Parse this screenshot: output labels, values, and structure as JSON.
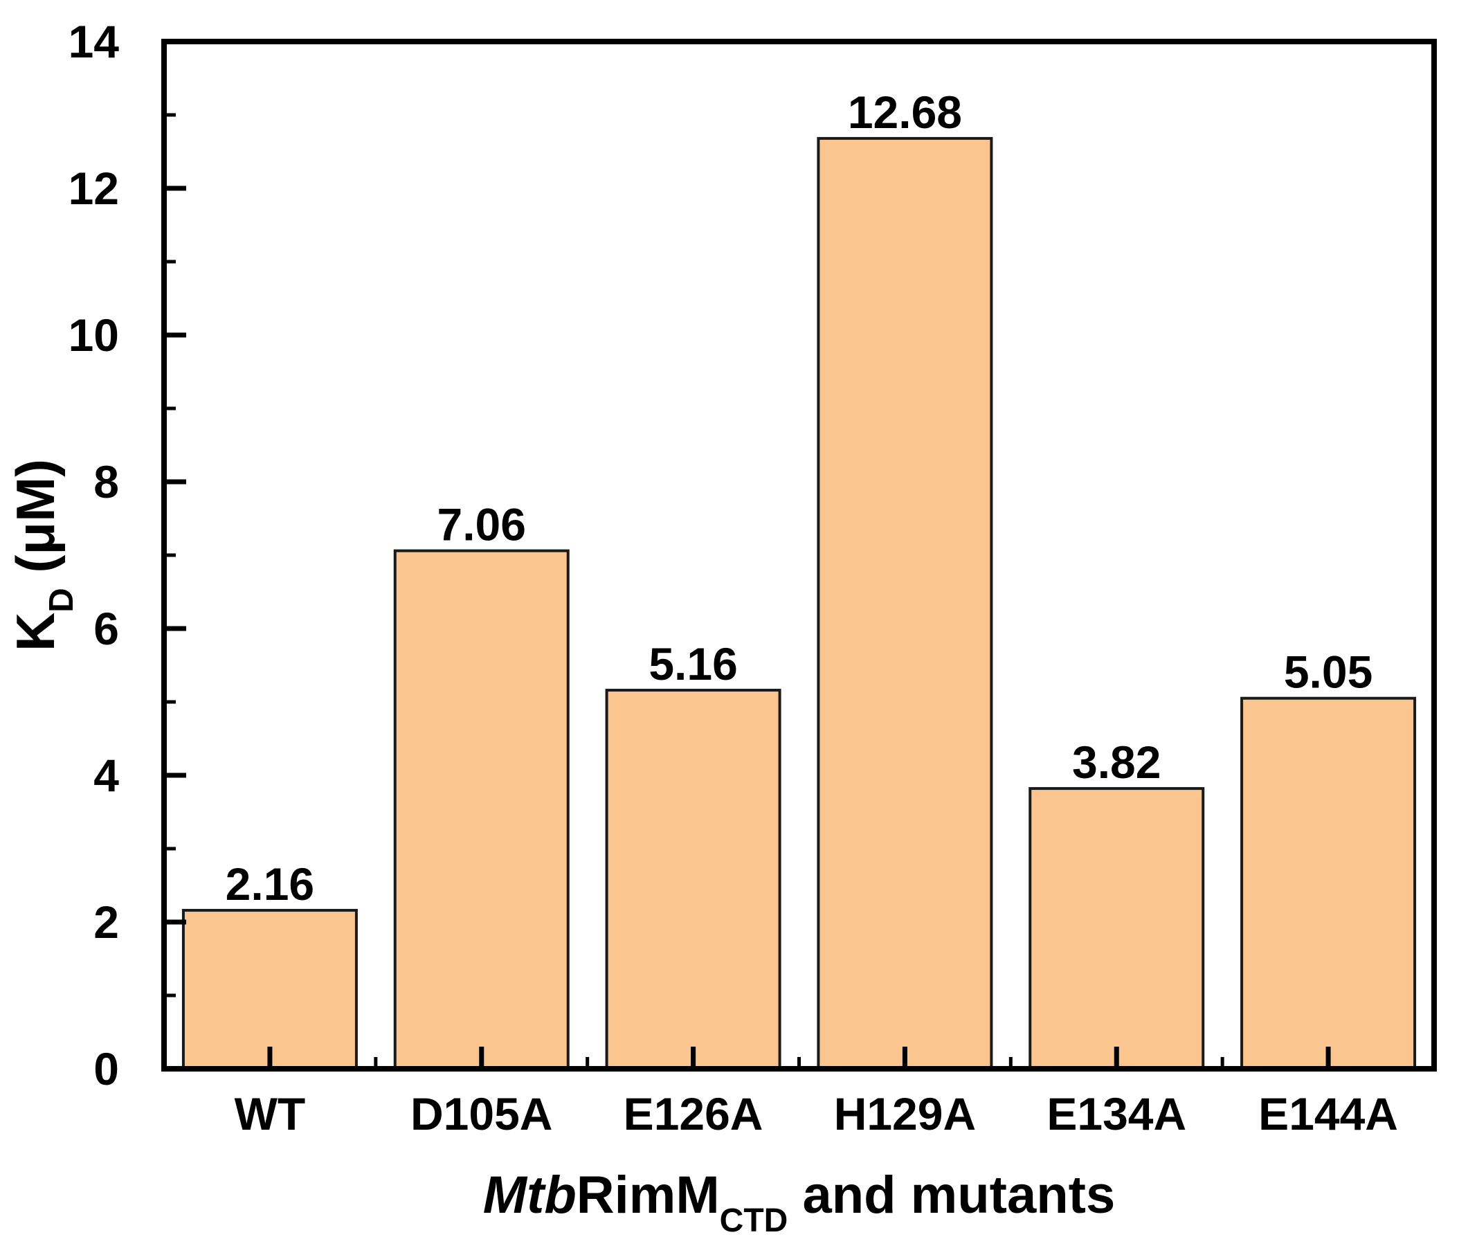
{
  "chart_data": {
    "type": "bar",
    "title": "",
    "categories": [
      "WT",
      "D105A",
      "E126A",
      "H129A",
      "E134A",
      "E144A"
    ],
    "values": [
      2.16,
      7.06,
      5.16,
      12.68,
      3.82,
      5.05
    ],
    "value_labels": [
      "2.16",
      "7.06",
      "5.16",
      "12.68",
      "3.82",
      "5.05"
    ],
    "xlabel": "MtbRimM_CTD and mutants",
    "xlabel_parts": [
      {
        "t": "Mtb",
        "italic": true
      },
      {
        "t": "RimM"
      },
      {
        "t": "CTD",
        "sub": true
      },
      {
        "t": " and mutants"
      }
    ],
    "ylabel": "K_D (uM)",
    "ylabel_parts": [
      {
        "t": "K"
      },
      {
        "t": "D",
        "sub": true
      },
      {
        "t": " (μM)"
      }
    ],
    "ylim": [
      0,
      14
    ],
    "yticks": [
      0,
      2,
      4,
      6,
      8,
      10,
      12,
      14
    ],
    "ytick_minor": [
      1,
      3,
      5,
      7,
      9,
      11,
      13
    ],
    "grid": false,
    "legend": null,
    "colors": {
      "bar_fill": "#FAC58E",
      "bar_edge": "#1A1A1A",
      "axis": "#000000",
      "text": "#000000",
      "background": "#FFFFFF"
    }
  }
}
